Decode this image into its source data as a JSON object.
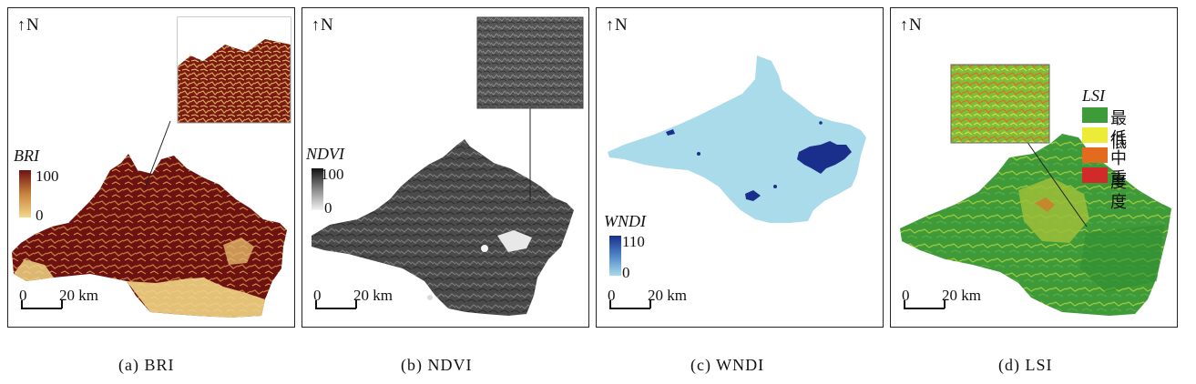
{
  "north_label": "N",
  "north_arrow": "↑",
  "scale": {
    "zero": "0",
    "distance": "20 km"
  },
  "panels": [
    {
      "id": "a",
      "legend": {
        "title": "BRI",
        "max": "100",
        "min": "0"
      },
      "caption": "(a) BRI",
      "colors": {
        "high": "#6e1111",
        "low": "#f3d98c"
      }
    },
    {
      "id": "b",
      "legend": {
        "title": "NDVI",
        "max": "100",
        "min": "0"
      },
      "caption": "(b) NDVI",
      "colors": {
        "high": "#111111",
        "low": "#f2f2f2"
      }
    },
    {
      "id": "c",
      "legend": {
        "title": "WNDI",
        "max": "110",
        "min": "0"
      },
      "caption": "(c) WNDI",
      "colors": {
        "high": "#1a2f8c",
        "low": "#a9dbea"
      }
    },
    {
      "id": "d",
      "legend": {
        "title": "LSI",
        "classes": [
          {
            "label": "最低",
            "color": "#3e9b3a"
          },
          {
            "label": "低",
            "color": "#ecec38"
          },
          {
            "label": "中度",
            "color": "#e36b1f"
          },
          {
            "label": "重度",
            "color": "#d12a2a"
          }
        ]
      },
      "caption": "(d) LSI"
    }
  ]
}
